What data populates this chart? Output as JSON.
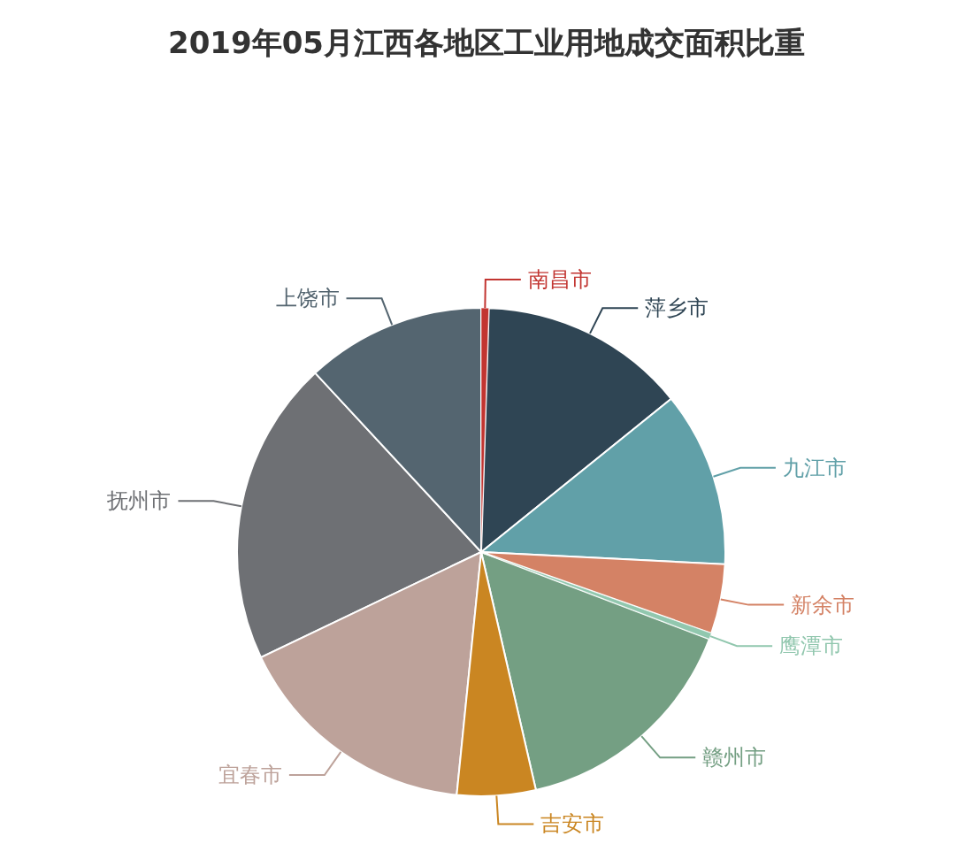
{
  "chart_data": {
    "type": "pie",
    "title": "2019年05月江西各地区工业用地成交面积比重",
    "categories": [
      "南昌市",
      "萍乡市",
      "九江市",
      "新余市",
      "鹰潭市",
      "赣州市",
      "吉安市",
      "宜春市",
      "抚州市",
      "上饶市"
    ],
    "values": [
      0.5,
      13.7,
      11.6,
      4.6,
      0.4,
      15.6,
      5.2,
      16.3,
      20.2,
      11.9
    ],
    "colors": [
      "#c23531",
      "#2f4554",
      "#61a0a8",
      "#d48265",
      "#91c7ae",
      "#749f83",
      "#ca8622",
      "#bda29a",
      "#6e7074",
      "#546570"
    ]
  }
}
